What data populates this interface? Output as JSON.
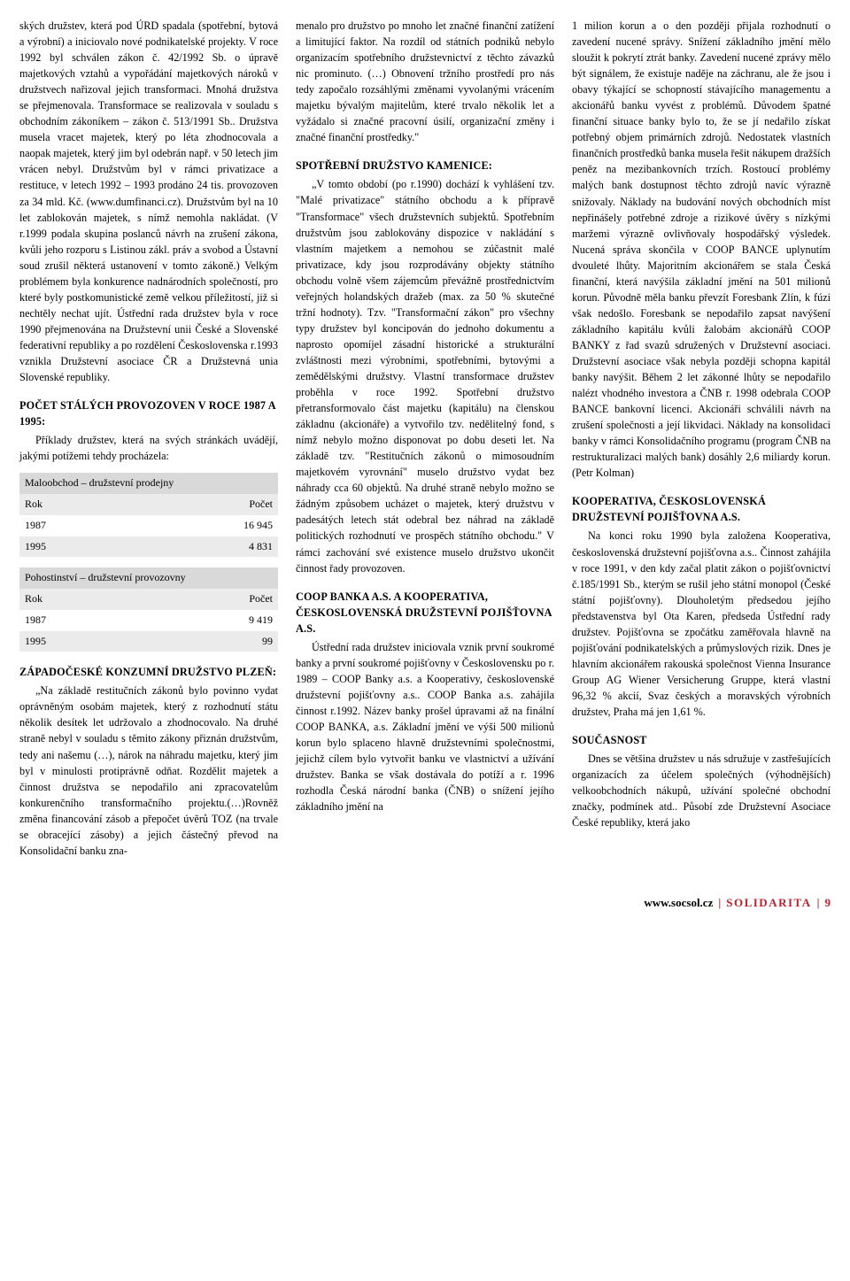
{
  "col1": {
    "p1": "ských družstev, která pod ÚRD spadala (spotřební, bytová a výrobní) a iniciovalo nové podnikatelské projekty. V roce 1992 byl schválen zákon č. 42/1992 Sb. o úpravě majetkových vztahů a vypořádání majetkových nároků v družstvech nařizoval jejich transformaci. Mnohá družstva se přejmenovala. Transformace se realizovala v souladu s obchodním zákoníkem – zákon č. 513/1991 Sb.. Družstva musela vracet majetek, který po léta zhodnocovala a naopak majetek, který jim byl odebrán např. v 50 letech jim vrácen nebyl. Družstvům byl v rámci privatizace a restituce, v letech 1992 – 1993 prodáno 24 tis. provozoven za 34 mld. Kč. (www.dumfinanci.cz). Družstvům byl na 10 let zablokován majetek, s nímž nemohla nakládat. (V r.1999 podala skupina poslanců návrh na zrušení zákona, kvůli jeho rozporu s Listinou zákl. práv a svobod a Ústavní soud zrušil některá ustanovení v tomto zákoně.) Velkým problémem byla konkurence nadnárodních společností, pro které byly postkomunistické země velkou příležitostí, již si nechtěly nechat ujít. Ústřední rada družstev byla v roce 1990 přejmenována na Družstevní unii České a Slovenské federativní republiky a po rozdělení Československa r.1993 vznikla Družstevní asociace ČR a Družstevná unia Slovenské republiky.",
    "h1": "POČET STÁLÝCH PROVOZOVEN V ROCE 1987 A 1995:",
    "p2": "Příklady družstev, která na svých stránkách uvádějí, jakými potížemi tehdy procházela:",
    "table1": {
      "header": "Maloobchod – družstevní prodejny",
      "rows": [
        [
          "Rok",
          "Počet"
        ],
        [
          "1987",
          "16 945"
        ],
        [
          "1995",
          "4 831"
        ]
      ]
    },
    "table2": {
      "header": "Pohostinství – družstevní provozovny",
      "rows": [
        [
          "Rok",
          "Počet"
        ],
        [
          "1987",
          "9 419"
        ],
        [
          "1995",
          "99"
        ]
      ]
    },
    "h2": "ZÁPADOČESKÉ KONZUMNÍ DRUŽSTVO PLZEŇ:",
    "p3": "„Na základě restitučních zákonů bylo povinno vydat oprávněným osobám majetek, který z rozhodnutí státu několik desítek let udržovalo a zhodnocovalo. Na druhé straně nebyl v souladu s těmito zákony přiznán družstvům, tedy ani našemu (…), nárok na náhradu majetku, který jim byl v minulosti protiprávně odňat. Rozdělit majetek a činnost družstva se nepodařilo ani zpracovatelům konkurenčního transformačního projektu.(…)Rovněž změna financování zásob a přepočet úvěrů TOZ (na trvale se obracející zásoby) a jejich částečný převod na Konsolidační banku zna-"
  },
  "col2": {
    "p1": "menalo pro družstvo po mnoho let značné finanční zatížení a limitující faktor. Na rozdíl od státních podniků nebylo organizacím spotřebního družstevnictví z těchto závazků nic prominuto. (…) Obnovení tržního prostředí pro nás tedy započalo rozsáhlými změnami vyvolanými vrácením majetku bývalým majitelům, které trvalo několik let a vyžádalo si značné pracovní úsilí, organizační změny i značné finanční prostředky.\"",
    "h1": "SPOTŘEBNÍ DRUŽSTVO KAMENICE:",
    "p2": "„V tomto období (po r.1990) dochází k vyhlášení tzv. \"Malé privatizace\" státního obchodu a k přípravě \"Transformace\" všech družstevních subjektů. Spotřebním družstvům jsou zablokovány dispozice v nakládání s vlastním majetkem a nemohou se zúčastnit malé privatizace, kdy jsou rozprodávány objekty státního obchodu volně všem zájemcům převážně prostřednictvím veřejných holandských dražeb (max. za 50 % skutečné tržní hodnoty). Tzv. \"Transformační zákon\" pro všechny typy družstev byl koncipován do jednoho dokumentu a naprosto opomíjel zásadní historické a strukturální zvláštnosti mezi výrobními, spotřebními, bytovými a zemědělskými družstvy. Vlastní transformace družstev proběhla v roce 1992. Spotřební družstvo přetransformovalo část majetku (kapitálu) na členskou základnu (akcionáře) a vytvořilo tzv. nedělitelný fond, s nímž nebylo možno disponovat po dobu deseti let. Na základě tzv. \"Restitučních zákonů o mimosoudním majetkovém vyrovnání\" muselo družstvo vydat bez náhrady cca 60 objektů. Na druhé straně nebylo možno se žádným způsobem ucházet o majetek, který družstvu v padesátých letech stát odebral bez náhrad na základě politických rozhodnutí ve prospěch státního obchodu.\" V rámci zachování své existence muselo družstvo ukončit činnost řady provozoven.",
    "h2": "COOP BANKA A.S. A KOOPERATIVA, ČESKOSLOVENSKÁ DRUŽSTEVNÍ POJIŠŤOVNA A.S.",
    "p3": "Ústřední rada družstev iniciovala vznik první soukromé banky a první soukromé pojišťovny v Československu po r. 1989 – COOP Banky a.s. a Kooperativy, československé družstevní pojišťovny a.s.. COOP Banka a.s. zahájila činnost r.1992. Název banky prošel úpravami až na finální COOP BANKA, a.s. Základní jmění ve výši 500 milionů korun bylo splaceno hlavně družstevními společnostmi, jejichž cílem bylo vytvořit banku ve vlastnictví a užívání družstev. Banka se však dostávala do potíží a r. 1996 rozhodla Česká národní banka (ČNB) o snížení jejího základního jmění na"
  },
  "col3": {
    "p1": "1 milion korun a o den později přijala rozhodnutí o zavedení nucené správy. Snížení základního jmění mělo sloužit k pokrytí ztrát banky. Zavedení nucené zprávy mělo být signálem, že existuje naděje na záchranu, ale že jsou i obavy týkající se schopností stávajícího managementu a akcionářů banku vyvést z problémů. Důvodem špatné finanční situace banky bylo to, že se jí nedařilo získat potřebný objem primárních zdrojů. Nedostatek vlastních finančních prostředků banka musela řešit nákupem dražších peněz na mezibankovních trzích. Rostoucí problémy malých bank dostupnost těchto zdrojů navíc výrazně snižovaly. Náklady na budování nových obchodních míst nepřinášely potřebné zdroje a rizikové úvěry s nízkými maržemi výrazně ovlivňovaly hospodářský výsledek. Nucená správa skončila v COOP BANCE uplynutím dvouleté lhůty. Majoritním akcionářem se stala Česká finanční, která navýšila základní jmění na 501 milionů korun. Původně měla banku převzít Foresbank Zlín, k fúzi však nedošlo. Foresbank se nepodařilo zapsat navýšení základního kapitálu kvůli žalobám akcionářů COOP BANKY z řad svazů sdružených v Družstevní asociaci. Družstevní asociace však nebyla později schopna kapitál banky navýšit. Během 2 let zákonné lhůty se nepodařilo nalézt vhodného investora a ČNB r. 1998 odebrala COOP BANCE bankovní licenci. Akcionáři schválili návrh na zrušení společnosti a její likvidaci. Náklady na konsolidaci banky v rámci Konsolidačního programu (program ČNB na restrukturalizaci malých bank) dosáhly 2,6 miliardy korun. (Petr Kolman)",
    "h1": "KOOPERATIVA, ČESKOSLOVENSKÁ DRUŽSTEVNÍ POJIŠŤOVNA A.S.",
    "p2": "Na konci roku 1990 byla založena Kooperativa, československá družstevní pojišťovna a.s.. Činnost zahájila v roce 1991, v den kdy začal platit zákon o pojišťovnictví č.185/1991 Sb., kterým se rušil jeho státní monopol (České státní pojišťovny). Dlouholetým předsedou jejího představenstva byl Ota Karen, předseda Ústřední rady družstev. Pojišťovna se zpočátku zaměřovala hlavně na pojišťování podnikatelských a průmyslových rizik. Dnes je hlavním akcionářem rakouská společnost Vienna Insurance Group AG Wiener Versicherung Gruppe, která vlastní 96,32 % akcií, Svaz českých a moravských výrobních družstev, Praha má jen 1,61 %.",
    "h2": "SOUČASNOST",
    "p3": "Dnes se většina družstev u nás sdružuje v zastřešujících organizacích za účelem společných (výhodnějších) velkoobchodních nákupů, užívání společné obchodní značky, podmínek atd.. Působí zde Družstevní Asociace České republiky, která jako"
  },
  "footer": {
    "site": "www.socsol.cz",
    "brand": "SOLIDARITA",
    "page": "9"
  }
}
